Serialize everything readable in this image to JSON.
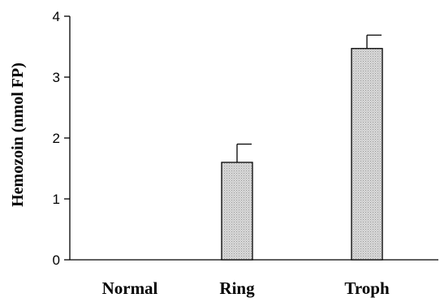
{
  "chart_data": {
    "type": "bar",
    "title": "",
    "xlabel": "",
    "ylabel": "Hemozoin (nmol FP)",
    "categories": [
      "Normal",
      "Ring",
      "Troph"
    ],
    "values": [
      0,
      1.6,
      3.47
    ],
    "error_upper": [
      0,
      0.3,
      0.22
    ],
    "ylim": [
      0,
      4
    ],
    "yticks": [
      "0",
      "1",
      "2",
      "3",
      "4"
    ],
    "grid": false,
    "legend": "none",
    "colors": {
      "bar_fill": "#d6d6d6",
      "bar_stroke": "#000000",
      "axis": "#000000"
    }
  }
}
